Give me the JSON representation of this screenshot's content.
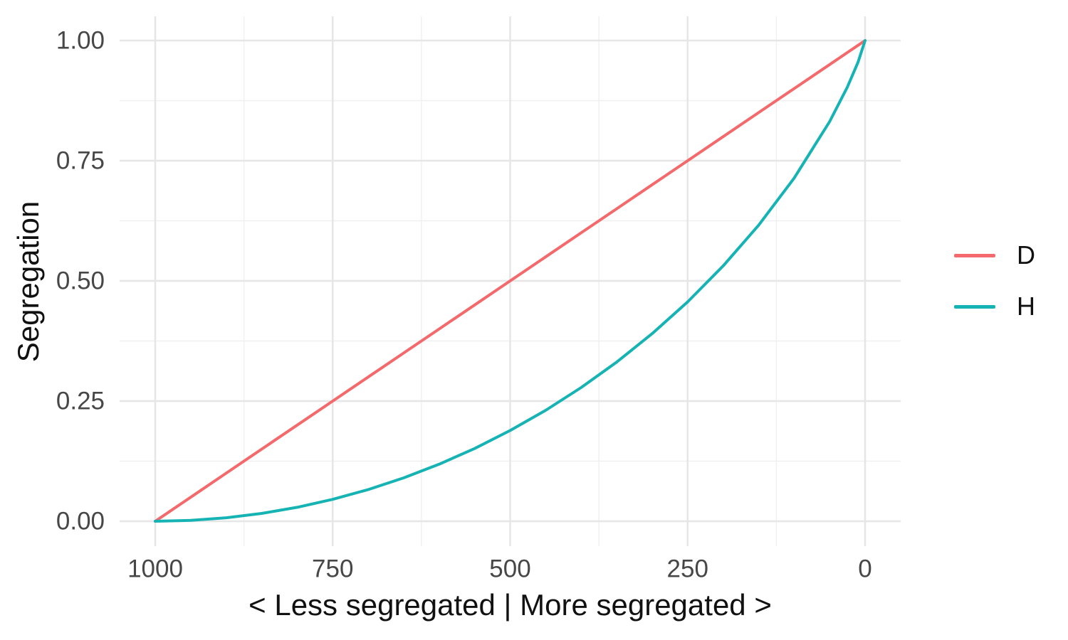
{
  "figure": {
    "x_axis_title": "< Less segregated | More segregated >",
    "y_axis_title": "Segregation"
  },
  "legend": {
    "items": [
      {
        "label": "D",
        "color": "#F4696B"
      },
      {
        "label": "H",
        "color": "#16B3B5"
      }
    ]
  },
  "colors": {
    "background": "#FFFFFF",
    "grid_major": "#E6E6E6",
    "grid_minor": "#F0F0F0",
    "axis_text": "#474747",
    "title_text": "#111111",
    "series_d": "#F4696B",
    "series_h": "#16B3B5"
  },
  "chart_data": {
    "type": "line",
    "title": "",
    "xlabel": "< Less segregated | More segregated >",
    "ylabel": "Segregation",
    "legend_position": "right",
    "grid": true,
    "x_axis_reversed": true,
    "xlim": [
      1000,
      0
    ],
    "ylim": [
      0,
      1
    ],
    "x_ticks": [
      1000,
      750,
      500,
      250,
      0
    ],
    "x_tick_labels": [
      "1000",
      "750",
      "500",
      "250",
      "0"
    ],
    "y_ticks": [
      0,
      0.25,
      0.5,
      0.75,
      1
    ],
    "y_tick_labels": [
      "0.00",
      "0.25",
      "0.50",
      "0.75",
      "1.00"
    ],
    "x": [
      1000,
      950,
      900,
      850,
      800,
      750,
      700,
      650,
      600,
      550,
      500,
      450,
      400,
      350,
      300,
      250,
      200,
      150,
      100,
      50,
      25,
      10,
      0
    ],
    "series": [
      {
        "name": "D",
        "values": [
          0,
          0.05,
          0.1,
          0.15,
          0.2,
          0.25,
          0.3,
          0.35,
          0.4,
          0.45,
          0.5,
          0.55,
          0.6,
          0.65,
          0.7,
          0.75,
          0.8,
          0.85,
          0.9,
          0.95,
          0.975,
          0.99,
          1
        ]
      },
      {
        "name": "H",
        "values": [
          0,
          0.0018,
          0.0072,
          0.0162,
          0.029,
          0.0455,
          0.0659,
          0.0902,
          0.1187,
          0.1514,
          0.1887,
          0.2308,
          0.2781,
          0.331,
          0.3902,
          0.4564,
          0.531,
          0.6157,
          0.7136,
          0.8313,
          0.9031,
          0.9546,
          1
        ]
      }
    ]
  }
}
